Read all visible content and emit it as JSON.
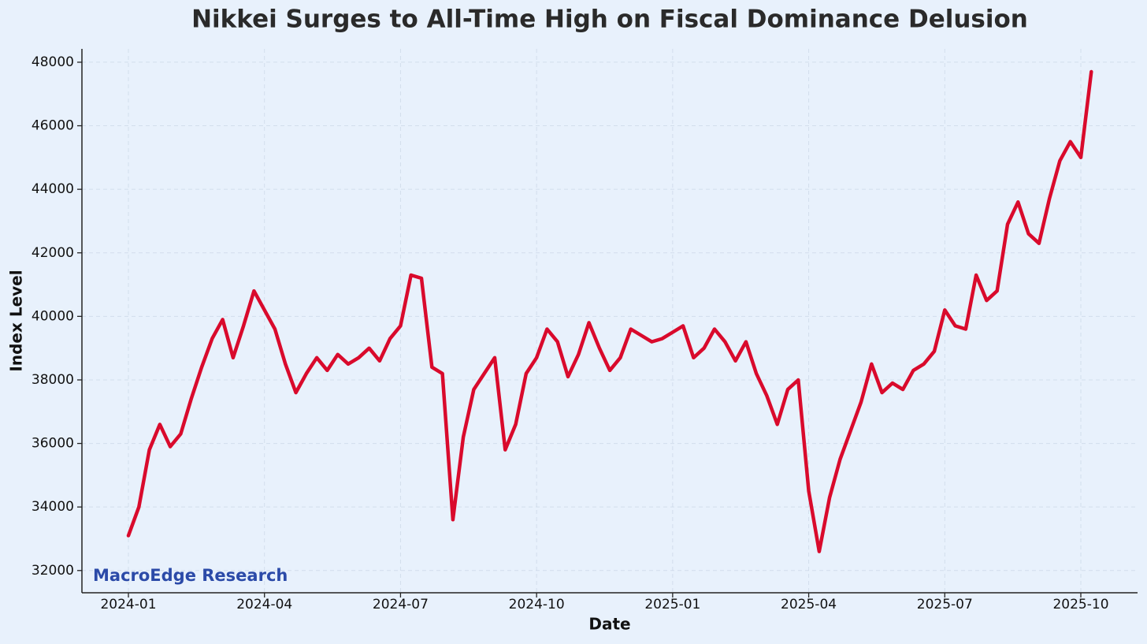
{
  "chart_data": {
    "type": "line",
    "title": "Nikkei Surges to All-Time High on Fiscal Dominance Delusion",
    "xlabel": "Date",
    "ylabel": "Index Level",
    "watermark": "MacroEdge Research",
    "color": "#d90a2c",
    "grid": true,
    "categories": [
      "2024-01",
      null,
      null,
      null,
      null,
      null,
      null,
      null,
      null,
      null,
      null,
      null,
      null,
      "2024-04",
      null,
      null,
      null,
      null,
      null,
      null,
      null,
      null,
      null,
      null,
      null,
      null,
      "2024-07",
      null,
      null,
      null,
      null,
      null,
      null,
      null,
      null,
      null,
      null,
      null,
      null,
      "2024-10",
      null,
      null,
      null,
      null,
      null,
      null,
      null,
      null,
      null,
      null,
      null,
      null,
      "2025-01",
      null,
      null,
      null,
      null,
      null,
      null,
      null,
      null,
      null,
      null,
      null,
      null,
      "2025-04",
      null,
      null,
      null,
      null,
      null,
      null,
      null,
      null,
      null,
      null,
      null,
      null,
      "2025-07",
      null,
      null,
      null,
      null,
      null,
      null,
      null,
      null,
      null,
      null,
      null,
      null,
      "2025-10",
      null
    ],
    "values": [
      33100,
      34000,
      35800,
      36600,
      35900,
      36300,
      37400,
      38400,
      39300,
      39900,
      38700,
      39700,
      40800,
      40200,
      39600,
      38500,
      37600,
      38200,
      38700,
      38300,
      38800,
      38500,
      38700,
      39000,
      38600,
      39300,
      39700,
      41300,
      41200,
      38400,
      38200,
      33600,
      36200,
      37700,
      38200,
      38700,
      35800,
      36600,
      38200,
      38700,
      39600,
      39200,
      38100,
      38800,
      39800,
      39000,
      38300,
      38700,
      39600,
      39400,
      39200,
      39300,
      39500,
      39700,
      38700,
      39000,
      39600,
      39200,
      38600,
      39200,
      38200,
      37500,
      36600,
      37700,
      38000,
      34500,
      32600,
      34300,
      35500,
      36400,
      37300,
      38500,
      37600,
      37900,
      37700,
      38300,
      38500,
      38900,
      40200,
      39700,
      39600,
      41300,
      40500,
      40800,
      42900,
      43600,
      42600,
      42300,
      43700,
      44900,
      45500,
      45000,
      47700
    ],
    "ylim": [
      31300,
      48420
    ],
    "yticks": [
      32000,
      34000,
      36000,
      38000,
      40000,
      42000,
      44000,
      46000,
      48000
    ]
  }
}
